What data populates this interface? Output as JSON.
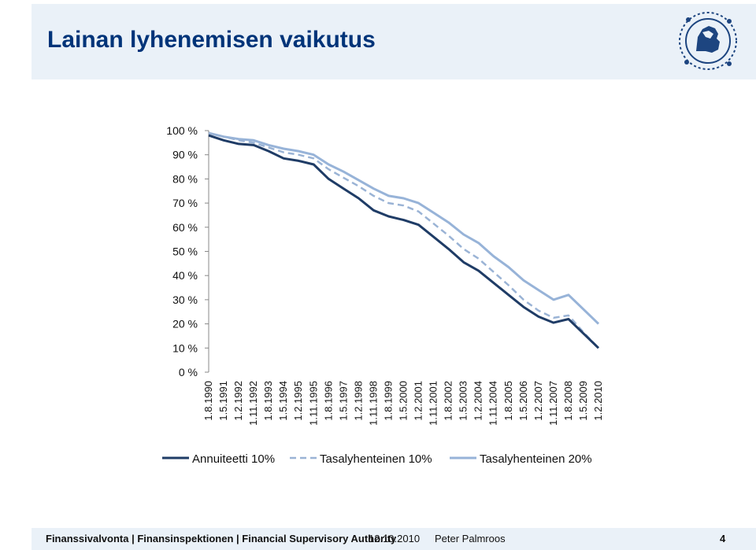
{
  "slide": {
    "title": "Lainan lyhenemisen vaikutus",
    "footer_org": "Finanssivalvonta | Finansinspektionen | Financial Supervisory Authority",
    "footer_date": "12.10.2010",
    "footer_author": "Peter Palmroos",
    "page_number": "4"
  },
  "colors": {
    "title": "#003479",
    "band": "#eaf1f8",
    "annuity": "#1f3c66",
    "flat10": "#9ab3d5",
    "flat20": "#97b3d8"
  },
  "chart_data": {
    "type": "line",
    "title": "",
    "xlabel": "",
    "ylabel": "",
    "ylim": [
      0,
      100
    ],
    "y_ticks": [
      "100 %",
      "90 %",
      "80 %",
      "70 %",
      "60 %",
      "50 %",
      "40 %",
      "30 %",
      "20 %",
      "10 %",
      "0 %"
    ],
    "x_labels": [
      "1.8.1990",
      "1.5.1991",
      "1.2.1992",
      "1.11.1992",
      "1.8.1993",
      "1.5.1994",
      "1.2.1995",
      "1.11.1995",
      "1.8.1996",
      "1.5.1997",
      "1.2.1998",
      "1.11.1998",
      "1.8.1999",
      "1.5.2000",
      "1.2.2001",
      "1.11.2001",
      "1.8.2002",
      "1.5.2003",
      "1.2.2004",
      "1.11.2004",
      "1.8.2005",
      "1.5.2006",
      "1.2.2007",
      "1.11.2007",
      "1.8.2008",
      "1.5.2009",
      "1.2.2010"
    ],
    "legend_position": "bottom",
    "grid": false,
    "series": [
      {
        "name": "Annuiteetti 10%",
        "style": "solid",
        "values": [
          98,
          96,
          94.5,
          94,
          91.5,
          88.5,
          87.5,
          86,
          80,
          76,
          72,
          67,
          64.5,
          63,
          61,
          56,
          51,
          45.5,
          42,
          37,
          32,
          27,
          23,
          20.5,
          22,
          16,
          10
        ]
      },
      {
        "name": "Tasalyhenteinen 10%",
        "style": "dashed",
        "values": [
          99,
          97.5,
          96,
          95,
          93,
          91,
          90,
          88.5,
          84,
          80.5,
          77,
          73,
          70,
          69,
          66.5,
          61.5,
          56.5,
          51,
          47,
          41.5,
          36,
          30,
          25.5,
          22.5,
          23.5,
          16.5,
          10
        ]
      },
      {
        "name": "Tasalyhenteinen 20%",
        "style": "solid",
        "values": [
          99,
          97.5,
          96.5,
          96,
          94,
          92.5,
          91.5,
          90,
          86,
          83,
          79.5,
          76,
          73,
          72,
          70,
          66,
          62,
          57,
          53.5,
          48,
          43.5,
          38,
          34,
          30,
          32,
          26,
          20
        ]
      }
    ]
  }
}
